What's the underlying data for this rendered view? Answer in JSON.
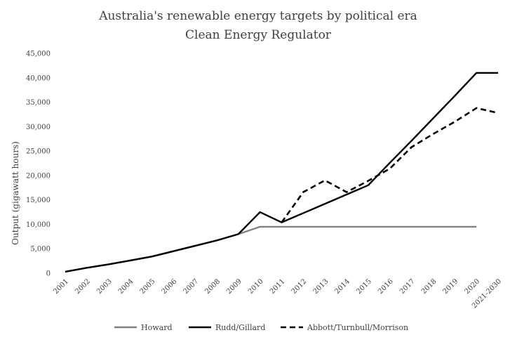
{
  "chart_data": {
    "type": "line",
    "title": "Australia's renewable energy targets by political era",
    "subtitle": "Clean Energy Regulator",
    "xlabel": "",
    "ylabel": "Output (gigawatt hours)",
    "ylim": [
      0,
      45000
    ],
    "yticks": [
      "0",
      "5,000",
      "10,000",
      "15,000",
      "20,000",
      "25,000",
      "30,000",
      "35,000",
      "40,000",
      "45,000"
    ],
    "categories": [
      "2001",
      "2002",
      "2003",
      "2004",
      "2005",
      "2006",
      "2007",
      "2008",
      "2009",
      "2010",
      "2011",
      "2012",
      "2013",
      "2014",
      "2015",
      "2016",
      "2017",
      "2018",
      "2019",
      "2020",
      "2021-2030"
    ],
    "grid": false,
    "legend": "bottom",
    "series": [
      {
        "name": "Howard",
        "color": "#808080",
        "style": "solid",
        "values": [
          300,
          1100,
          1800,
          2600,
          3400,
          4500,
          5600,
          6700,
          8000,
          9500,
          9500,
          9500,
          9500,
          9500,
          9500,
          9500,
          9500,
          9500,
          9500,
          9500,
          null
        ]
      },
      {
        "name": "Rudd/Gillard",
        "color": "#000000",
        "style": "solid",
        "values": [
          300,
          1100,
          1800,
          2600,
          3400,
          4500,
          5600,
          6700,
          8000,
          12500,
          10400,
          12300,
          14200,
          16100,
          18000,
          22600,
          27100,
          31700,
          36300,
          41000,
          41000
        ]
      },
      {
        "name": "Abbott/Turnbull/Morrison",
        "color": "#000000",
        "style": "dashed",
        "values": [
          null,
          null,
          null,
          null,
          null,
          null,
          null,
          null,
          null,
          null,
          10400,
          16600,
          19000,
          16600,
          18900,
          21400,
          25800,
          28500,
          31000,
          33800,
          32800
        ]
      }
    ]
  }
}
